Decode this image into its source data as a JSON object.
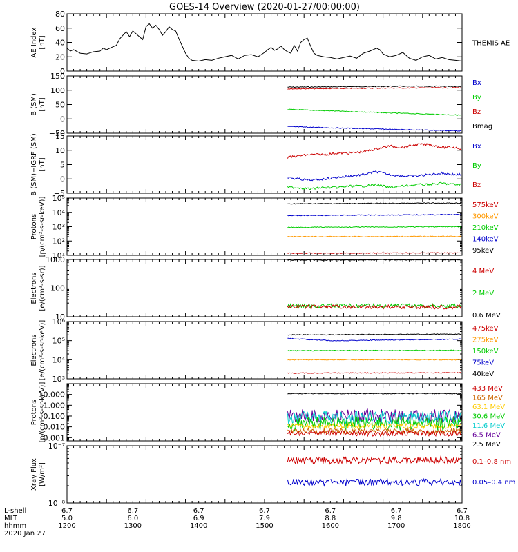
{
  "title": "GOES-14 Overview (2020-01-27/00:00:00)",
  "chart_data": [
    {
      "type": "line",
      "id": "ae",
      "ylabel": [
        "AE Index",
        "[nT]"
      ],
      "ylim": [
        0,
        80
      ],
      "yticks": [
        0,
        20,
        40,
        60,
        80
      ],
      "ytick_labels": [
        "0",
        "20",
        "40",
        "60",
        "80"
      ],
      "legend": [
        {
          "name": "THEMIS AE",
          "color": "#000000"
        }
      ],
      "series": [
        {
          "name": "THEMIS AE",
          "color": "#000000",
          "x": [
            1200,
            1205,
            1210,
            1220,
            1230,
            1240,
            1250,
            1255,
            1260,
            1270,
            1275,
            1280,
            1285,
            1290,
            1295,
            1300,
            1305,
            1310,
            1315,
            1320,
            1325,
            1330,
            1335,
            1340,
            1345,
            1350,
            1355,
            1360,
            1365,
            1370,
            1375,
            1380,
            1385,
            1390,
            1400,
            1410,
            1420,
            1430,
            1440,
            1450,
            1460,
            1470,
            1480,
            1490,
            1500,
            1505,
            1510,
            1515,
            1520,
            1525,
            1530,
            1535,
            1540,
            1545,
            1550,
            1555,
            1560,
            1565,
            1570,
            1575,
            1580,
            1590,
            1600,
            1610,
            1620,
            1630,
            1640,
            1650,
            1660,
            1670,
            1675,
            1680,
            1685,
            1690,
            1700,
            1710,
            1720,
            1730,
            1740,
            1750,
            1760,
            1770,
            1780,
            1790,
            1800
          ],
          "y": [
            32,
            28,
            30,
            25,
            24,
            27,
            28,
            32,
            30,
            34,
            36,
            45,
            50,
            55,
            48,
            56,
            52,
            48,
            44,
            62,
            66,
            60,
            64,
            58,
            50,
            55,
            62,
            58,
            56,
            45,
            35,
            25,
            18,
            15,
            14,
            16,
            15,
            18,
            20,
            22,
            17,
            22,
            23,
            20,
            26,
            30,
            33,
            29,
            31,
            35,
            30,
            27,
            25,
            36,
            28,
            40,
            44,
            46,
            35,
            25,
            22,
            20,
            19,
            17,
            19,
            21,
            18,
            25,
            28,
            32,
            30,
            24,
            22,
            20,
            22,
            26,
            18,
            15,
            20,
            22,
            17,
            19,
            16,
            15,
            14
          ]
        }
      ]
    },
    {
      "type": "line",
      "id": "bfield",
      "ylabel": [
        "B (SM)",
        "[nT]"
      ],
      "ylim": [
        -50,
        150
      ],
      "yticks": [
        -50,
        0,
        50,
        100,
        150
      ],
      "ytick_labels": [
        "−50",
        "0",
        "50",
        "100",
        "150"
      ],
      "legend": [
        {
          "name": "Bx",
          "color": "#0000cc"
        },
        {
          "name": "By",
          "color": "#00cc00"
        },
        {
          "name": "Bz",
          "color": "#cc0000"
        },
        {
          "name": "Bmag",
          "color": "#000000"
        }
      ],
      "series": [
        {
          "name": "Bmag",
          "color": "#000000",
          "x": [
            1535,
            1600,
            1700,
            1800
          ],
          "y": [
            111,
            112,
            114,
            114
          ]
        },
        {
          "name": "Bz",
          "color": "#cc0000",
          "x": [
            1535,
            1600,
            1700,
            1800
          ],
          "y": [
            105,
            106,
            108,
            109
          ]
        },
        {
          "name": "By",
          "color": "#00cc00",
          "x": [
            1535,
            1600,
            1700,
            1800
          ],
          "y": [
            33,
            28,
            20,
            13
          ]
        },
        {
          "name": "Bx",
          "color": "#0000cc",
          "x": [
            1535,
            1600,
            1700,
            1800
          ],
          "y": [
            -27,
            -31,
            -37,
            -42
          ]
        }
      ]
    },
    {
      "type": "line",
      "id": "bdiff",
      "ylabel": [
        "B (SM)−IGRF (SM)",
        "[nT]"
      ],
      "ylim": [
        -5,
        15
      ],
      "yticks": [
        -5,
        0,
        5,
        10,
        15
      ],
      "ytick_labels": [
        "−5",
        "0",
        "5",
        "10",
        "15"
      ],
      "legend": [
        {
          "name": "Bx",
          "color": "#0000cc"
        },
        {
          "name": "By",
          "color": "#00cc00"
        },
        {
          "name": "Bz",
          "color": "#cc0000"
        }
      ],
      "series": [
        {
          "name": "Bz",
          "color": "#cc0000",
          "x": [
            1535,
            1550,
            1570,
            1590,
            1610,
            1630,
            1650,
            1670,
            1690,
            1710,
            1730,
            1750,
            1770,
            1790,
            1800
          ],
          "y": [
            7.5,
            8,
            8.5,
            8.5,
            9,
            9,
            9.5,
            10.5,
            11.5,
            11,
            12,
            12,
            11,
            11,
            10.5
          ]
        },
        {
          "name": "Bx",
          "color": "#0000cc",
          "x": [
            1535,
            1550,
            1570,
            1590,
            1610,
            1630,
            1650,
            1670,
            1690,
            1710,
            1730,
            1750,
            1770,
            1790,
            1800
          ],
          "y": [
            0.5,
            0,
            -0.5,
            0,
            0.5,
            1,
            1.5,
            2.5,
            1.5,
            1,
            1,
            1.5,
            2,
            1.5,
            1.5
          ]
        },
        {
          "name": "By",
          "color": "#00cc00",
          "x": [
            1535,
            1550,
            1570,
            1590,
            1610,
            1630,
            1650,
            1670,
            1690,
            1710,
            1730,
            1750,
            1770,
            1790,
            1800
          ],
          "y": [
            -3,
            -3,
            -3.5,
            -3,
            -3,
            -2.5,
            -2.5,
            -2,
            -3,
            -2.5,
            -2,
            -2,
            -1.5,
            -2,
            -2
          ]
        }
      ]
    },
    {
      "type": "line",
      "id": "protons-low",
      "ylabel": [
        "Protons",
        "[p/(cm²-s-sr-keV)]"
      ],
      "yscale": "log",
      "ylim": [
        10,
        100000
      ],
      "yticks": [
        10,
        100,
        1000,
        10000,
        100000
      ],
      "ytick_labels": [
        "10¹",
        "10²",
        "10³",
        "10⁴",
        "10⁵"
      ],
      "legend": [
        {
          "name": "575keV",
          "color": "#cc0000"
        },
        {
          "name": "300keV",
          "color": "#ff9900"
        },
        {
          "name": "210keV",
          "color": "#00cc00"
        },
        {
          "name": "140keV",
          "color": "#0000cc"
        },
        {
          "name": "95keV",
          "color": "#000000"
        }
      ],
      "series": [
        {
          "name": "95keV",
          "color": "#000000",
          "x": [
            1535,
            1800
          ],
          "y": [
            40000,
            45000
          ]
        },
        {
          "name": "140keV",
          "color": "#0000cc",
          "x": [
            1535,
            1800
          ],
          "y": [
            6000,
            7000
          ]
        },
        {
          "name": "210keV",
          "color": "#00cc00",
          "x": [
            1535,
            1800
          ],
          "y": [
            900,
            1000
          ]
        },
        {
          "name": "300keV",
          "color": "#ff9900",
          "x": [
            1535,
            1800
          ],
          "y": [
            200,
            210
          ]
        },
        {
          "name": "575keV",
          "color": "#cc0000",
          "x": [
            1535,
            1800
          ],
          "y": [
            14,
            15
          ]
        }
      ]
    },
    {
      "type": "line",
      "id": "electrons-high",
      "ylabel": [
        "Electrons",
        "[e/(cm²-s-sr)]"
      ],
      "yscale": "log",
      "ylim": [
        10,
        1000
      ],
      "yticks": [
        10,
        100,
        1000
      ],
      "ytick_labels": [
        "10",
        "100",
        "1000"
      ],
      "legend": [
        {
          "name": "4 MeV",
          "color": "#cc0000"
        },
        {
          "name": "2 MeV",
          "color": "#00cc00"
        },
        {
          "name": "0.6 MeV",
          "color": "#000000"
        }
      ],
      "series": [
        {
          "name": "0.6 MeV",
          "color": "#000000",
          "x": [
            1535,
            1800
          ],
          "y": [
            950,
            980
          ]
        },
        {
          "name": "2 MeV",
          "color": "#00cc00",
          "x": [
            1535,
            1800
          ],
          "y": [
            24,
            24
          ]
        },
        {
          "name": "4 MeV",
          "color": "#cc0000",
          "x": [
            1535,
            1800
          ],
          "y": [
            22,
            22
          ]
        }
      ]
    },
    {
      "type": "line",
      "id": "electrons-low",
      "ylabel": [
        "Electrons",
        "[e/(cm²-s-sr-keV)]"
      ],
      "yscale": "log",
      "ylim": [
        1000,
        1000000
      ],
      "yticks": [
        1000,
        10000,
        100000,
        1000000
      ],
      "ytick_labels": [
        "10³",
        "10⁴",
        "10⁵",
        "10⁶"
      ],
      "legend": [
        {
          "name": "475keV",
          "color": "#cc0000"
        },
        {
          "name": "275keV",
          "color": "#ff9900"
        },
        {
          "name": "150keV",
          "color": "#00cc00"
        },
        {
          "name": "75keV",
          "color": "#0000cc"
        },
        {
          "name": "40keV",
          "color": "#000000"
        }
      ],
      "series": [
        {
          "name": "40keV",
          "color": "#000000",
          "x": [
            1535,
            1800
          ],
          "y": [
            200000,
            220000
          ]
        },
        {
          "name": "75keV",
          "color": "#0000cc",
          "x": [
            1535,
            1600,
            1800
          ],
          "y": [
            130000,
            100000,
            120000
          ]
        },
        {
          "name": "150keV",
          "color": "#00cc00",
          "x": [
            1535,
            1800
          ],
          "y": [
            30000,
            31000
          ]
        },
        {
          "name": "275keV",
          "color": "#ff9900",
          "x": [
            1535,
            1800
          ],
          "y": [
            10000,
            10000
          ]
        },
        {
          "name": "475keV",
          "color": "#cc0000",
          "x": [
            1535,
            1800
          ],
          "y": [
            2000,
            2100
          ]
        }
      ]
    },
    {
      "type": "line",
      "id": "protons-high",
      "ylabel": [
        "Protons",
        "[p/(cm²-s-sr-keV)]"
      ],
      "yscale": "log",
      "ylim": [
        0.0005,
        100
      ],
      "yticks": [
        0.001,
        0.01,
        0.1,
        1,
        10
      ],
      "ytick_labels": [
        "0.001",
        "0.010",
        "0.100",
        "1.000",
        "10.000"
      ],
      "legend": [
        {
          "name": "433 MeV",
          "color": "#cc0000"
        },
        {
          "name": "165 MeV",
          "color": "#cc6600"
        },
        {
          "name": "63.1 MeV",
          "color": "#ffcc00"
        },
        {
          "name": "30.6 MeV",
          "color": "#00cc00"
        },
        {
          "name": "11.6 MeV",
          "color": "#00cccc"
        },
        {
          "name": "6.5 MeV",
          "color": "#660099"
        },
        {
          "name": "2.5 MeV",
          "color": "#000000"
        }
      ],
      "series": [
        {
          "name": "2.5 MeV",
          "color": "#000000",
          "x": [
            1535,
            1800
          ],
          "y": [
            12,
            12
          ]
        },
        {
          "name": "6.5 MeV",
          "color": "#660099",
          "x": [
            1535,
            1800
          ],
          "y": [
            0.1,
            0.1
          ]
        },
        {
          "name": "11.6 MeV",
          "color": "#00cccc",
          "x": [
            1535,
            1800
          ],
          "y": [
            0.07,
            0.07
          ]
        },
        {
          "name": "30.6 MeV",
          "color": "#00cc00",
          "x": [
            1535,
            1800
          ],
          "y": [
            0.02,
            0.02
          ]
        },
        {
          "name": "63.1 MeV",
          "color": "#ffcc00",
          "x": [
            1535,
            1800
          ],
          "y": [
            0.012,
            0.012
          ]
        },
        {
          "name": "165 MeV",
          "color": "#cc6600",
          "x": [
            1535,
            1800
          ],
          "y": [
            0.004,
            0.004
          ]
        },
        {
          "name": "433 MeV",
          "color": "#cc0000",
          "x": [
            1535,
            1800
          ],
          "y": [
            0.0025,
            0.0025
          ]
        }
      ]
    },
    {
      "type": "line",
      "id": "xray",
      "ylabel": [
        "Xray Flux",
        "[W/m²]"
      ],
      "yscale": "log",
      "ylim": [
        1e-08,
        1e-07
      ],
      "yticks": [
        1e-08,
        1e-07
      ],
      "ytick_labels": [
        "10⁻⁸",
        "10⁻⁷"
      ],
      "legend": [
        {
          "name": "0.1–0.8 nm",
          "color": "#cc0000"
        },
        {
          "name": "0.05–0.4 nm",
          "color": "#0000cc"
        }
      ],
      "series": [
        {
          "name": "0.1–0.8 nm",
          "color": "#cc0000",
          "x": [
            1535,
            1800
          ],
          "y": [
            5.5e-08,
            5.6e-08
          ]
        },
        {
          "name": "0.05–0.4 nm",
          "color": "#0000cc",
          "x": [
            1535,
            1800
          ],
          "y": [
            2.3e-08,
            2.3e-08
          ]
        }
      ]
    }
  ],
  "xaxis": {
    "xlim": [
      1200,
      1800
    ],
    "ticks": [
      1200,
      1300,
      1400,
      1500,
      1600,
      1700,
      1800
    ],
    "rows": [
      {
        "label": "L-shell",
        "values": [
          "6.7",
          "6.7",
          "6.7",
          "6.7",
          "6.7",
          "6.7",
          "6.7"
        ]
      },
      {
        "label": "MLT",
        "values": [
          "5.0",
          "6.0",
          "6.9",
          "7.9",
          "8.8",
          "9.8",
          "10.8"
        ]
      },
      {
        "label": "hhmm",
        "values": [
          "1200",
          "1300",
          "1400",
          "1500",
          "1600",
          "1700",
          "1800"
        ]
      }
    ],
    "date": "2020 Jan 27"
  }
}
